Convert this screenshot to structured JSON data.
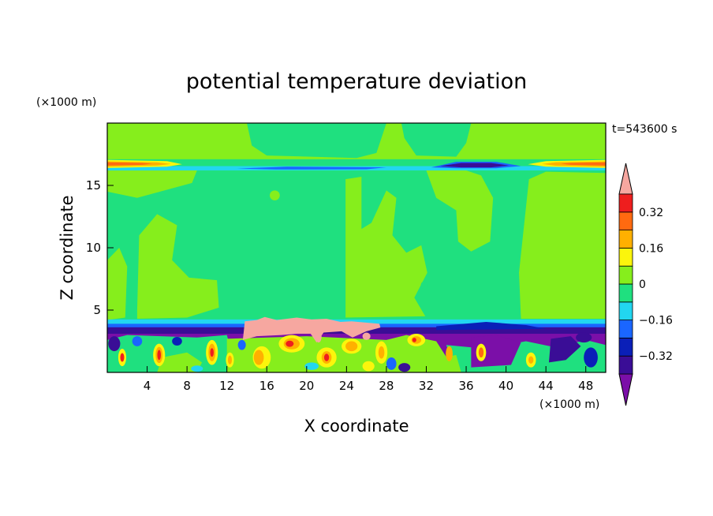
{
  "chart_data": {
    "type": "heatmap",
    "title": "potential temperature deviation",
    "xlabel": "X coordinate",
    "ylabel": "Z coordinate",
    "x_unit": "(×1000 m)",
    "y_unit": "(×1000 m)",
    "time_label": "t=543600 s",
    "xlim": [
      0,
      50
    ],
    "ylim": [
      0,
      20
    ],
    "x_ticks": [
      4,
      8,
      12,
      16,
      20,
      24,
      28,
      32,
      36,
      40,
      44,
      48
    ],
    "y_ticks": [
      5,
      10,
      15
    ],
    "grid": false,
    "colorbar": {
      "levels": [
        -0.4,
        -0.32,
        -0.24,
        -0.16,
        -0.08,
        0,
        0.08,
        0.16,
        0.24,
        0.32,
        0.4
      ],
      "colors": [
        "#7b0fa8",
        "#3a0d96",
        "#0a1fb8",
        "#1a66ff",
        "#22d6f0",
        "#1fe07f",
        "#86ee1c",
        "#fbf50c",
        "#ffb000",
        "#ff6a10",
        "#ee1e1e",
        "#f6a7a0"
      ],
      "labels": [
        "0.32",
        "0.16",
        "0",
        "−0.16",
        "−0.32"
      ],
      "label_values": [
        0.32,
        0.16,
        0,
        -0.16,
        -0.32
      ]
    },
    "regions": [
      {
        "name": "background",
        "level": "light-green",
        "x": [
          0,
          50
        ],
        "z": [
          0,
          20
        ]
      },
      {
        "name": "mid-troposphere",
        "level": "sea-green",
        "x": [
          0,
          50
        ],
        "z": [
          4.2,
          16.2
        ]
      },
      {
        "name": "upper layer",
        "level": "light-green",
        "x": [
          0,
          50
        ],
        "z": [
          17.2,
          20
        ]
      },
      {
        "name": "tropopause warm band left",
        "level": "orange-red",
        "x": [
          0,
          6
        ],
        "z": [
          16.4,
          17.0
        ]
      },
      {
        "name": "tropopause warm band right",
        "level": "orange-red",
        "x": [
          42,
          50
        ],
        "z": [
          16.4,
          17.0
        ]
      },
      {
        "name": "tropopause cold band",
        "level": "dark-blue",
        "x": [
          33,
          41
        ],
        "z": [
          16.3,
          16.8
        ]
      },
      {
        "name": "boundary-layer cap",
        "level": "blue-purple",
        "x": [
          0,
          50
        ],
        "z": [
          3.2,
          4.0
        ]
      },
      {
        "name": "warm plume",
        "level": "pink",
        "x": [
          13.5,
          27.5
        ],
        "z": [
          2.4,
          4.4
        ]
      },
      {
        "name": "boundary-layer turbulence",
        "level": "mixed",
        "x": [
          0,
          50
        ],
        "z": [
          0,
          3.3
        ]
      }
    ]
  }
}
